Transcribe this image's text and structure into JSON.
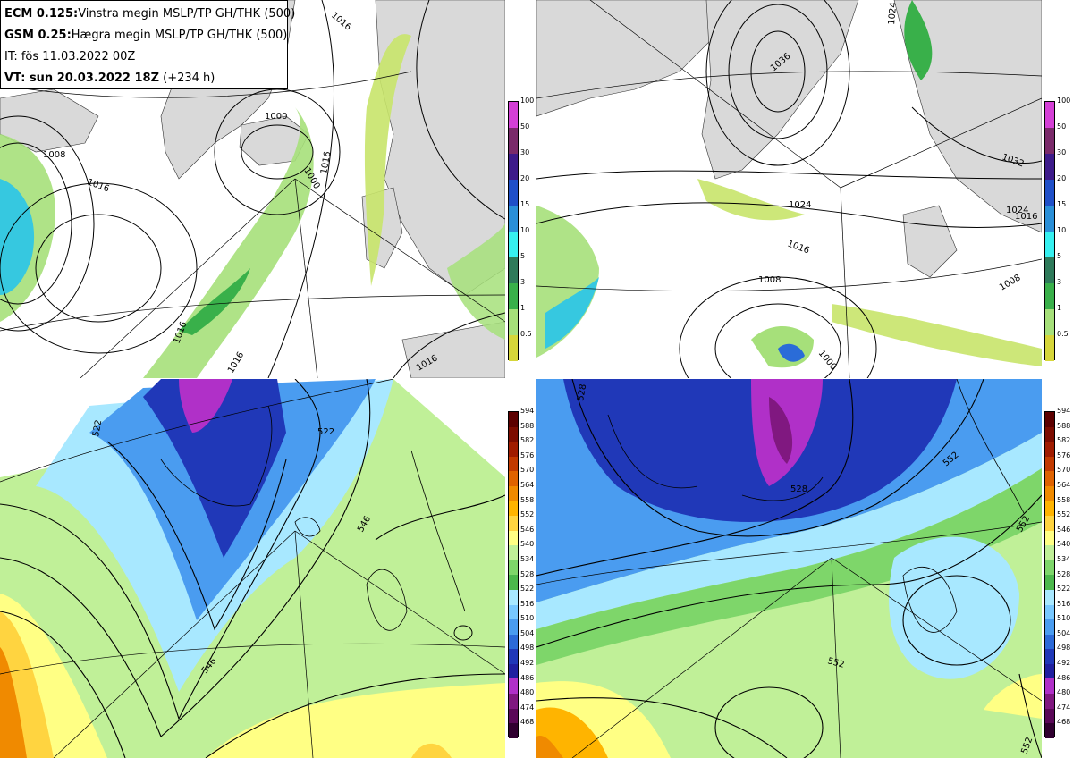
{
  "header": {
    "line1_model": "ECM 0.125:",
    "line1_desc": "Vinstra megin MSLP/TP GH/THK (500)",
    "line2_model": "GSM 0.25:",
    "line2_desc": "Hægra megin MSLP/TP GH/THK (500)",
    "line3": "IT: fös 11.03.2022 00Z",
    "line4_label": "VT: sun 20.03.2022 18Z",
    "line4_offset": "(+234 h)"
  },
  "precip_legend": {
    "levels": [
      "100",
      "50",
      "30",
      "20",
      "15",
      "10",
      "5",
      "3",
      "1",
      "0.5"
    ],
    "colors": [
      "#d43fd6",
      "#7a2a6a",
      "#3d1b8a",
      "#1f4fc8",
      "#2a8fd8",
      "#36f0f0",
      "#2e7a5a",
      "#39b04a",
      "#a6e07a",
      "#d6d63a"
    ]
  },
  "thickness_legend": {
    "levels": [
      "594",
      "588",
      "582",
      "576",
      "570",
      "564",
      "558",
      "552",
      "546",
      "540",
      "534",
      "528",
      "522",
      "516",
      "510",
      "504",
      "498",
      "492",
      "486",
      "480",
      "474",
      "468"
    ],
    "colors": [
      "#5c0000",
      "#7c0c00",
      "#a01c00",
      "#c23a00",
      "#df6200",
      "#f08a00",
      "#ffb400",
      "#ffd440",
      "#ffff84",
      "#c0f098",
      "#7ed66a",
      "#4cb84c",
      "#a8e8ff",
      "#78c8ff",
      "#4a9cf0",
      "#2c6ad8",
      "#2038b8",
      "#2020a0",
      "#b030c8",
      "#801880",
      "#5a0858",
      "#300030"
    ]
  },
  "contour_labels": {
    "tl": [
      "1016",
      "1000",
      "1008",
      "1016",
      "1016",
      "1000",
      "1016",
      "1016",
      "1016"
    ],
    "tr": [
      "1024",
      "1036",
      "1032",
      "1024",
      "1016",
      "1008",
      "1000",
      "1024",
      "1016",
      "1008"
    ],
    "bl": [
      "522",
      "522",
      "546",
      "546"
    ],
    "br": [
      "528",
      "528",
      "552",
      "552",
      "552",
      "552"
    ]
  }
}
